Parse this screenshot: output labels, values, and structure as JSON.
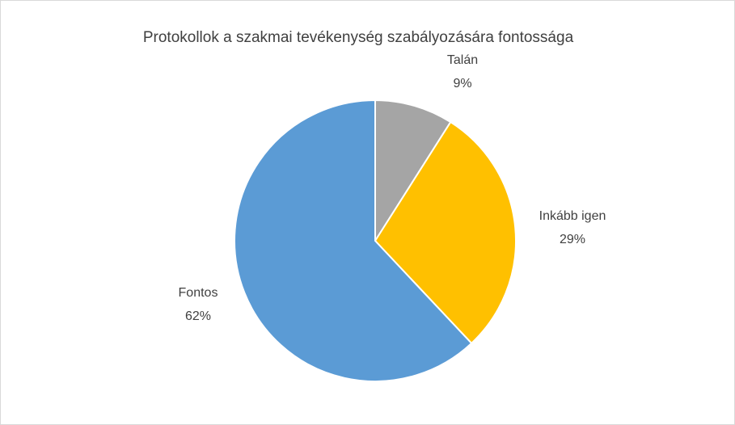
{
  "chart_data": {
    "type": "pie",
    "title": "Protokollok a szakmai tevékenység szabályozására fontossága",
    "categories": [
      "Talán",
      "Inkább igen",
      "Fontos"
    ],
    "values": [
      9,
      29,
      62
    ],
    "value_labels": [
      "9%",
      "29%",
      "62%"
    ],
    "colors": [
      "#a5a5a5",
      "#ffc000",
      "#5b9bd5"
    ]
  }
}
